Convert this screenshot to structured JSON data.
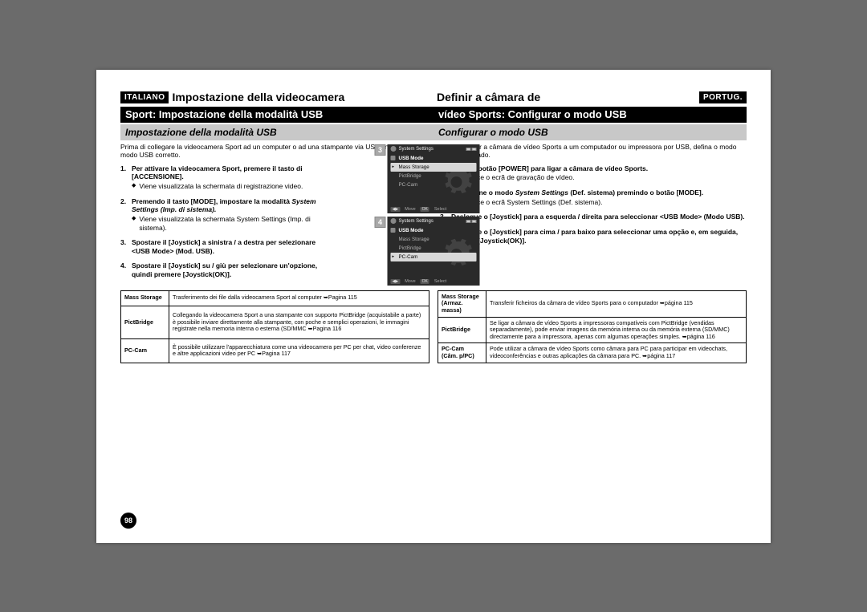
{
  "left_lang": "ITALIANO",
  "right_lang": "PORTUG.",
  "left": {
    "title_line1": "Impostazione della videocamera",
    "title_line2": "Sport: Impostazione della modalità USB",
    "section": "Impostazione della modalità USB",
    "intro": "Prima di collegare la videocamera Sport ad un computer o ad una stampante via USB, impostare il modo USB corretto.",
    "steps": [
      {
        "n": "1.",
        "title": "Per attivare la videocamera Sport, premere il tasto di [ACCENSIONE].",
        "bullet": "Viene visualizzata la schermata di registrazione video."
      },
      {
        "n": "2.",
        "title": "Premendo il tasto [MODE], impostare la modalità ",
        "italic": "System Settings (Imp. di sistema).",
        "bullet": "Viene visualizzata la schermata System Settings (Imp. di sistema)."
      },
      {
        "n": "3.",
        "title": "Spostare il [Joystick] a sinistra / a destra per selezionare <USB Mode> (Mod. USB).",
        "bullet": ""
      },
      {
        "n": "4.",
        "title": "Spostare il [Joystick] su / giù per selezionare un'opzione, quindi premere [Joystick(OK)].",
        "bullet": ""
      }
    ],
    "table": [
      {
        "label": "Mass Storage",
        "desc": "Trasferimento dei file dalla videocamera Sport al computer ➥Pagina 115"
      },
      {
        "label": "PictBridge",
        "desc": "Collegando la videocamera Sport a una stampante con supporto PictBridge (acquistabile a parte) è possibile inviare direttamente alla stampante, con poche e semplici operazioni, le immagini registrate nella memoria interna o esterna (SD/MMC ➥Pagina 116"
      },
      {
        "label": "PC-Cam",
        "desc": "È possibile utilizzare l'apparecchiatura come una videocamera per PC per chat, video conferenze e altre applicazioni video per PC ➥Pagina 117"
      }
    ]
  },
  "right": {
    "title_line1": "Definir a câmara de",
    "title_line2": "vídeo Sports: Configurar o modo USB",
    "section": "Configurar o modo USB",
    "intro": "Antes de ligar a câmara de vídeo Sports a um computador ou impressora por USB, defina o modo USB apropriado.",
    "steps": [
      {
        "n": "1.",
        "title": "Prima o botão [POWER] para ligar a câmara de vídeo Sports.",
        "bullet": "Aparece o ecrã de gravação de vídeo."
      },
      {
        "n": "2.",
        "title": "Seleccione o modo ",
        "italic": "System Settings",
        "title2": " (Def. sistema) premindo o botão [MODE].",
        "bullet": "Aparece o ecrã System Settings (Def. sistema)."
      },
      {
        "n": "3.",
        "title": "Desloque o [Joystick] para a esquerda / direita para seleccionar <USB Mode> (Modo USB).",
        "bullet": ""
      },
      {
        "n": "4.",
        "title": "Desloque o [Joystick] para cima / para baixo para seleccionar uma opção e, em seguida, prima o [Joystick(OK)].",
        "bullet": ""
      }
    ],
    "table": [
      {
        "label": "Mass Storage",
        "label2": "(Armaz. massa)",
        "desc": "Transferir ficheiros da câmara de vídeo Sports para o computador ➥página 115"
      },
      {
        "label": "PictBridge",
        "desc": "Se ligar a câmara de vídeo Sports a impressoras compatíveis com PictBridge (vendidas separadamente), pode enviar imagens da memória interna ou da memória externa (SD/MMC) directamente para a impressora, apenas com algumas operações simples. ➥página 116"
      },
      {
        "label": "PC-Cam",
        "label2": "(Câm. p/PC)",
        "desc": "Pode utilizar a câmara de vídeo Sports como câmara para PC para participar em videochats, videoconferências e outras aplicações da câmara para PC. ➥página 117"
      }
    ]
  },
  "screens": [
    {
      "num": "3",
      "title": "System Settings",
      "menu_title": "USB Mode",
      "items": [
        "Mass Storage",
        "PictBridge",
        "PC-Cam"
      ],
      "selected": 0,
      "footer_l": "Move",
      "footer_r": "Select"
    },
    {
      "num": "4",
      "title": "System Settings",
      "menu_title": "USB Mode",
      "items": [
        "Mass Storage",
        "PictBridge",
        "PC-Cam"
      ],
      "selected": 2,
      "footer_l": "Move",
      "footer_r": "Select"
    }
  ],
  "page_number": "98"
}
